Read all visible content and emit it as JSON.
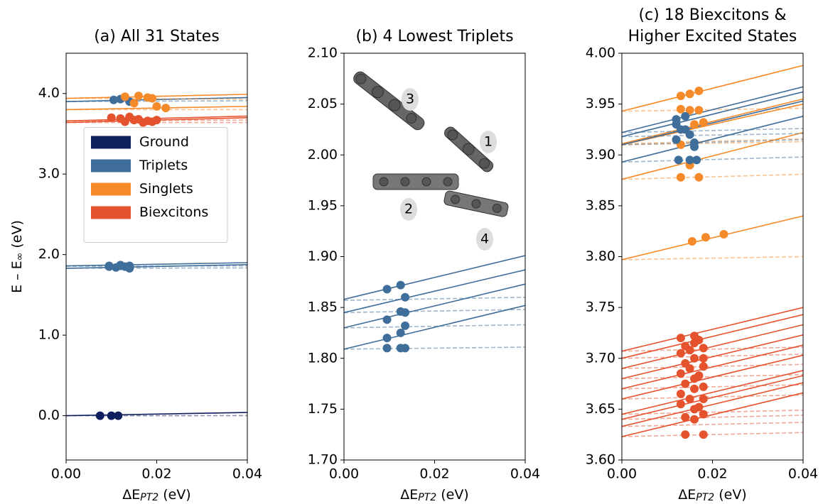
{
  "chart_data": [
    {
      "type": "scatter",
      "title": [
        "(a) All 31 States"
      ],
      "xlabel": [
        "ΔE",
        "PT2",
        " (eV)"
      ],
      "ylabel": [
        "E – E",
        "∞",
        " (eV)"
      ],
      "xlim": [
        0,
        0.04
      ],
      "ylim": [
        -0.55,
        4.5
      ],
      "xticks": [
        {
          "value": 0,
          "label": "0.00"
        },
        {
          "value": 0.02,
          "label": "0.02"
        },
        {
          "value": 0.04,
          "label": "0.04"
        }
      ],
      "yticks": [
        {
          "value": 0,
          "label": "0.0"
        },
        {
          "value": 1,
          "label": "1.0"
        },
        {
          "value": 2,
          "label": "2.0"
        },
        {
          "value": 3,
          "label": "3.0"
        },
        {
          "value": 4,
          "label": "4.0"
        }
      ],
      "legend": "center left",
      "line_x": [
        0,
        0.04
      ],
      "series": [
        {
          "name": "Ground",
          "color": "#0d1f5c",
          "states": [
            {
              "x": [
                0.0075,
                0.01,
                0.0115
              ],
              "values": [
                0,
                0,
                0
              ],
              "fit": [
                0,
                0.04
              ],
              "dashed": [
                0,
                0.001
              ]
            }
          ]
        },
        {
          "name": "Triplets",
          "color": "#3f6e9a",
          "states": [
            {
              "x": [
                0.0095,
                0.011,
                0.012,
                0.013,
                0.014
              ],
              "values": [
                1.86,
                1.84,
                1.86,
                1.85,
                1.83
              ],
              "fit": [
                1.83,
                1.875
              ],
              "dashed": [
                1.83,
                1.835
              ]
            },
            {
              "x": [
                0.0095,
                0.012,
                0.014
              ],
              "values": [
                1.85,
                1.87,
                1.86
              ],
              "fit": [
                1.86,
                1.9
              ],
              "dashed": [
                1.855,
                1.86
              ]
            },
            {
              "x": [
                0.0105,
                0.012,
                0.014
              ],
              "values": [
                3.92,
                3.93,
                3.9
              ],
              "fit": [
                3.9,
                3.95
              ],
              "dashed": [
                3.9,
                3.91
              ]
            }
          ]
        },
        {
          "name": "Singlets",
          "color": "#f58a2a",
          "states": [
            {
              "x": [
                0.013,
                0.016,
                0.018,
                0.019
              ],
              "values": [
                3.96,
                3.97,
                3.95,
                3.94
              ],
              "fit": [
                3.94,
                3.99
              ],
              "dashed": [
                3.94,
                3.93
              ]
            },
            {
              "x": [
                0.015,
                0.02,
                0.022
              ],
              "values": [
                3.88,
                3.84,
                3.82
              ],
              "fit": [
                3.8,
                3.84
              ],
              "dashed": [
                3.8,
                3.8
              ]
            }
          ]
        },
        {
          "name": "Biexcitons",
          "color": "#e5532e",
          "states": [
            {
              "x": [
                0.01,
                0.012,
                0.014,
                0.016,
                0.018,
                0.02
              ],
              "values": [
                3.7,
                3.69,
                3.71,
                3.68,
                3.66,
                3.67
              ],
              "fit": [
                3.66,
                3.72
              ],
              "dashed": [
                3.66,
                3.67
              ]
            },
            {
              "x": [
                0.013,
                0.015,
                0.017,
                0.019
              ],
              "values": [
                3.65,
                3.67,
                3.64,
                3.65
              ],
              "fit": [
                3.64,
                3.7
              ],
              "dashed": [
                3.64,
                3.64
              ]
            }
          ]
        }
      ]
    },
    {
      "type": "scatter",
      "title": [
        "(b) 4 Lowest Triplets"
      ],
      "xlabel": [
        "ΔE",
        "PT2",
        " (eV)"
      ],
      "xlim": [
        0,
        0.04
      ],
      "ylim": [
        1.7,
        2.1
      ],
      "xticks": [
        {
          "value": 0,
          "label": "0.00"
        },
        {
          "value": 0.02,
          "label": "0.02"
        },
        {
          "value": 0.04,
          "label": "0.04"
        }
      ],
      "yticks": [
        {
          "value": 1.7,
          "label": "1.70"
        },
        1.75,
        {
          "value": 1.8,
          "label": "1.80"
        },
        1.85,
        {
          "value": 1.9,
          "label": "1.90"
        },
        1.95,
        {
          "value": 2.0,
          "label": "2.00"
        },
        2.05,
        {
          "value": 2.1,
          "label": "2.10"
        }
      ],
      "annotations": [
        "3",
        "1",
        "2",
        "4"
      ],
      "line_x": [
        0,
        0.04
      ],
      "series": [
        {
          "color": "#3f6e9a",
          "states": [
            {
              "x": [
                0.0095,
                0.0125,
                0.0135
              ],
              "values": [
                1.81,
                1.81,
                1.81
              ],
              "fit": [
                1.809,
                1.852
              ],
              "dashed": [
                1.809,
                1.811
              ]
            },
            {
              "x": [
                0.0095,
                0.0125,
                0.0135
              ],
              "values": [
                1.82,
                1.825,
                1.832
              ],
              "fit": [
                1.83,
                1.873
              ],
              "dashed": [
                1.83,
                1.833
              ]
            },
            {
              "x": [
                0.0095,
                0.0125,
                0.0135
              ],
              "values": [
                1.838,
                1.846,
                1.845
              ],
              "fit": [
                1.845,
                1.887
              ],
              "dashed": [
                1.845,
                1.848
              ]
            },
            {
              "x": [
                0.0095,
                0.0125,
                0.0135
              ],
              "values": [
                1.868,
                1.872,
                1.86
              ],
              "fit": [
                1.858,
                1.901
              ],
              "dashed": [
                1.857,
                1.86
              ]
            }
          ]
        }
      ]
    },
    {
      "type": "scatter",
      "title": [
        "(c) 18 Biexcitons &",
        "Higher Excited States"
      ],
      "xlabel": [
        "ΔE",
        "PT2",
        " (eV)"
      ],
      "xlim": [
        0,
        0.04
      ],
      "ylim": [
        3.6,
        4.0
      ],
      "xticks": [
        {
          "value": 0,
          "label": "0.00"
        },
        {
          "value": 0.02,
          "label": "0.02"
        },
        {
          "value": 0.04,
          "label": "0.04"
        }
      ],
      "yticks": [
        {
          "value": 3.6,
          "label": "3.60"
        },
        3.65,
        {
          "value": 3.7,
          "label": "3.70"
        },
        3.75,
        {
          "value": 3.8,
          "label": "3.80"
        },
        3.85,
        {
          "value": 3.9,
          "label": "3.90"
        },
        3.95,
        {
          "value": 4.0,
          "label": "4.00"
        }
      ],
      "line_x": [
        0,
        0.04
      ],
      "series": [
        {
          "color": "#e5532e",
          "states": [
            {
              "x": [
                0.014,
                0.016,
                0.018
              ],
              "values": [
                3.625,
                3.64,
                3.625
              ],
              "fit": [
                3.623,
                3.666
              ],
              "dashed": [
                3.623,
                3.627
              ]
            },
            {
              "x": [
                0.014,
                0.016,
                0.018
              ],
              "values": [
                3.642,
                3.65,
                3.645
              ],
              "fit": [
                3.633,
                3.676
              ],
              "dashed": [
                3.633,
                3.637
              ]
            },
            {
              "x": [
                0.013,
                0.015,
                0.017
              ],
              "values": [
                3.655,
                3.66,
                3.652
              ],
              "fit": [
                3.64,
                3.683
              ],
              "dashed": [
                3.64,
                3.644
              ]
            },
            {
              "x": [
                0.013,
                0.016,
                0.018
              ],
              "values": [
                3.665,
                3.67,
                3.66
              ],
              "fit": [
                3.645,
                3.688
              ],
              "dashed": [
                3.645,
                3.649
              ]
            },
            {
              "x": [
                0.014,
                0.016,
                0.018
              ],
              "values": [
                3.675,
                3.68,
                3.672
              ],
              "fit": [
                3.66,
                3.703
              ],
              "dashed": [
                3.66,
                3.664
              ]
            },
            {
              "x": [
                0.013,
                0.015,
                0.017
              ],
              "values": [
                3.685,
                3.69,
                3.683
              ],
              "fit": [
                3.67,
                3.713
              ],
              "dashed": [
                3.67,
                3.674
              ]
            },
            {
              "x": [
                0.014,
                0.016,
                0.018
              ],
              "values": [
                3.695,
                3.7,
                3.692
              ],
              "fit": [
                3.68,
                3.723
              ],
              "dashed": [
                3.68,
                3.684
              ]
            },
            {
              "x": [
                0.013,
                0.015,
                0.018
              ],
              "values": [
                3.705,
                3.708,
                3.7
              ],
              "fit": [
                3.69,
                3.733
              ],
              "dashed": [
                3.69,
                3.694
              ]
            },
            {
              "x": [
                0.014,
                0.016,
                0.018
              ],
              "values": [
                3.712,
                3.715,
                3.71
              ],
              "fit": [
                3.7,
                3.743
              ],
              "dashed": [
                3.7,
                3.704
              ]
            },
            {
              "x": [
                0.013,
                0.016,
                0.017
              ],
              "values": [
                3.72,
                3.722,
                3.718
              ],
              "fit": [
                3.707,
                3.75
              ],
              "dashed": [
                3.707,
                3.711
              ]
            }
          ]
        },
        {
          "color": "#f58a2a",
          "states": [
            {
              "x": [
                0.013,
                0.015,
                0.017
              ],
              "values": [
                3.958,
                3.96,
                3.963
              ],
              "fit": [
                3.943,
                3.988
              ],
              "dashed": [
                3.943,
                3.946
              ]
            },
            {
              "x": [
                0.013,
                0.015,
                0.017
              ],
              "values": [
                3.945,
                3.944,
                3.944
              ],
              "fit": [
                3.911,
                3.955
              ],
              "dashed": [
                3.911,
                3.916
              ]
            },
            {
              "x": [
                0.013,
                0.016,
                0.018
              ],
              "values": [
                3.91,
                3.93,
                3.932
              ],
              "fit": [
                3.91,
                3.95
              ],
              "dashed": [
                3.91,
                3.913
              ]
            },
            {
              "x": [
                0.013,
                0.015,
                0.017
              ],
              "values": [
                3.878,
                3.89,
                3.878
              ],
              "fit": [
                3.876,
                3.922
              ],
              "dashed": [
                3.876,
                3.881
              ]
            },
            {
              "x": [
                0.0155,
                0.0185,
                0.0225
              ],
              "values": [
                3.815,
                3.819,
                3.822
              ],
              "fit": [
                3.797,
                3.84
              ],
              "dashed": [
                3.797,
                3.8
              ]
            }
          ]
        },
        {
          "color": "#3f6e9a",
          "states": [
            {
              "x": [
                0.012,
                0.013,
                0.015
              ],
              "values": [
                3.935,
                3.925,
                3.92
              ],
              "fit": [
                3.922,
                3.967
              ],
              "dashed": [
                3.922,
                3.926
              ]
            },
            {
              "x": [
                0.012,
                0.014,
                0.016
              ],
              "values": [
                3.93,
                3.938,
                3.912
              ],
              "fit": [
                3.918,
                3.962
              ],
              "dashed": [
                3.918,
                3.921
              ]
            },
            {
              "x": [
                0.012,
                0.014,
                0.016
              ],
              "values": [
                3.915,
                3.925,
                3.908
              ],
              "fit": [
                3.91,
                3.953
              ],
              "dashed": [
                3.91,
                3.915
              ]
            },
            {
              "x": [
                0.0125,
                0.015,
                0.0165
              ],
              "values": [
                3.895,
                3.895,
                3.895
              ],
              "fit": [
                3.893,
                3.938
              ],
              "dashed": [
                3.893,
                3.898
              ]
            }
          ]
        }
      ]
    }
  ]
}
